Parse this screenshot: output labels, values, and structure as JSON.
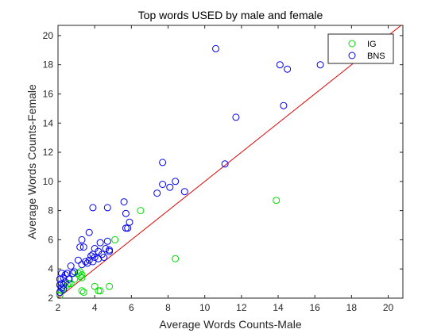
{
  "chart_data": {
    "type": "scatter",
    "title": "Top words USED by male and female",
    "xlabel": "Average Words Counts-Male",
    "ylabel": "Average Words Counts-Female",
    "xlim": [
      2,
      20.8
    ],
    "ylim": [
      2,
      20.7
    ],
    "xticks": [
      2,
      4,
      6,
      8,
      10,
      12,
      14,
      16,
      18,
      20
    ],
    "yticks": [
      2,
      4,
      6,
      8,
      10,
      12,
      14,
      16,
      18,
      20
    ],
    "grid": false,
    "legend_position": "top-right",
    "reference_line": {
      "color": "#e00000",
      "x": [
        2,
        20.8
      ],
      "y": [
        2,
        20.8
      ]
    },
    "series": [
      {
        "name": "IG",
        "color": "#00dd00",
        "points": [
          [
            6.5,
            8.0
          ],
          [
            5.1,
            6.0
          ],
          [
            13.9,
            8.7
          ],
          [
            8.4,
            4.7
          ],
          [
            4.0,
            2.8
          ],
          [
            4.2,
            2.5
          ],
          [
            4.3,
            2.5
          ],
          [
            4.8,
            2.8
          ],
          [
            3.3,
            2.5
          ],
          [
            3.4,
            2.4
          ],
          [
            3.1,
            3.7
          ],
          [
            3.2,
            3.5
          ],
          [
            3.3,
            3.6
          ],
          [
            3.3,
            3.4
          ],
          [
            3.2,
            3.8
          ],
          [
            2.9,
            3.3
          ],
          [
            2.7,
            3.0
          ],
          [
            2.5,
            2.9
          ],
          [
            2.3,
            2.7
          ],
          [
            2.2,
            2.5
          ],
          [
            2.6,
            3.0
          ],
          [
            2.1,
            2.2
          ]
        ]
      },
      {
        "name": "BNS",
        "color": "#0000ee",
        "points": [
          [
            10.6,
            19.1
          ],
          [
            14.1,
            18.0
          ],
          [
            14.5,
            17.7
          ],
          [
            16.3,
            18.0
          ],
          [
            14.3,
            15.2
          ],
          [
            11.7,
            14.4
          ],
          [
            11.1,
            11.2
          ],
          [
            7.7,
            11.3
          ],
          [
            8.4,
            10.0
          ],
          [
            7.7,
            9.8
          ],
          [
            8.1,
            9.6
          ],
          [
            8.9,
            9.3
          ],
          [
            7.4,
            9.2
          ],
          [
            3.9,
            8.2
          ],
          [
            4.7,
            8.2
          ],
          [
            5.6,
            8.6
          ],
          [
            5.7,
            7.8
          ],
          [
            5.9,
            7.2
          ],
          [
            5.7,
            6.8
          ],
          [
            5.8,
            6.8
          ],
          [
            3.7,
            6.5
          ],
          [
            3.3,
            6.0
          ],
          [
            4.3,
            5.8
          ],
          [
            4.7,
            5.9
          ],
          [
            3.2,
            5.5
          ],
          [
            3.4,
            5.5
          ],
          [
            4.0,
            5.4
          ],
          [
            4.2,
            5.2
          ],
          [
            4.6,
            5.4
          ],
          [
            4.8,
            5.2
          ],
          [
            4.8,
            5.3
          ],
          [
            4.4,
            5.0
          ],
          [
            3.8,
            4.9
          ],
          [
            3.9,
            5.0
          ],
          [
            4.0,
            4.8
          ],
          [
            4.2,
            4.7
          ],
          [
            3.7,
            4.6
          ],
          [
            4.5,
            4.8
          ],
          [
            3.5,
            4.5
          ],
          [
            3.6,
            4.4
          ],
          [
            3.3,
            4.3
          ],
          [
            3.9,
            4.5
          ],
          [
            3.1,
            4.6
          ],
          [
            2.7,
            4.2
          ],
          [
            2.9,
            3.8
          ],
          [
            2.8,
            3.7
          ],
          [
            2.4,
            3.6
          ],
          [
            2.3,
            3.4
          ],
          [
            2.5,
            3.7
          ],
          [
            2.2,
            3.7
          ],
          [
            2.1,
            3.3
          ],
          [
            2.2,
            3.0
          ],
          [
            2.4,
            3.1
          ],
          [
            2.6,
            3.3
          ],
          [
            2.1,
            2.9
          ],
          [
            2.2,
            2.7
          ],
          [
            2.3,
            2.9
          ],
          [
            2.1,
            2.4
          ],
          [
            2.3,
            2.6
          ]
        ]
      }
    ]
  }
}
